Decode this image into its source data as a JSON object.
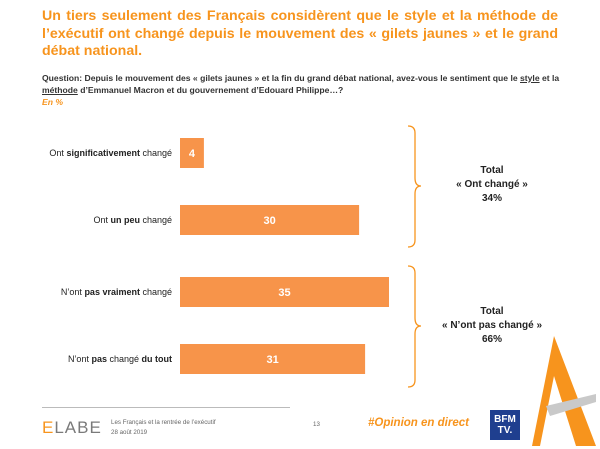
{
  "header": {
    "title": "Un tiers seulement des Français considèrent que le style et la méthode de l’exécutif ont changé depuis le mouvement des « gilets jaunes » et le grand débat national.",
    "question": {
      "part1": "Question: Depuis le mouvement des « gilets jaunes » et la fin du grand débat national, avez-vous le sentiment que le ",
      "style": "style",
      "part2": " et la ",
      "methode": "méthode",
      "part3": " d’Emmanuel Macron et du gouvernement d’Edouard Philippe…?"
    },
    "unit": "En  %"
  },
  "chart_data": {
    "type": "bar",
    "orientation": "horizontal",
    "categories": [
      "Ont significativement changé",
      "Ont un peu changé",
      "N’ont pas vraiment changé",
      "N’ont pas changé du tout"
    ],
    "category_parts": [
      {
        "pre": "Ont ",
        "bold": "significativement",
        "post": " changé"
      },
      {
        "pre": "Ont ",
        "bold": "un peu",
        "post": " changé"
      },
      {
        "pre": "N’ont ",
        "bold": "pas vraiment",
        "post": " changé"
      },
      {
        "pre": "N’ont ",
        "bold": "pas",
        "mid": " changé ",
        "bold2": "du tout",
        "post": ""
      }
    ],
    "values": [
      4,
      30,
      35,
      31
    ],
    "unit": "%",
    "color": "#f7944a",
    "xlim": [
      0,
      35
    ],
    "groups": [
      {
        "line1": "Total",
        "line2": "« Ont changé »",
        "line3": "34%"
      },
      {
        "line1": "Total",
        "line2": "« N’ont pas changé »",
        "line3": "66%"
      }
    ]
  },
  "footer": {
    "logo": {
      "e1": "E",
      "rest": "LABE"
    },
    "text_line1": "Les Français et la rentrée de l’exécutif",
    "text_line2": "28 août 2019",
    "page_number": "13",
    "hashtag": "#Opinion en direct",
    "bfm_line1": "BFM",
    "bfm_line2": "TV."
  }
}
